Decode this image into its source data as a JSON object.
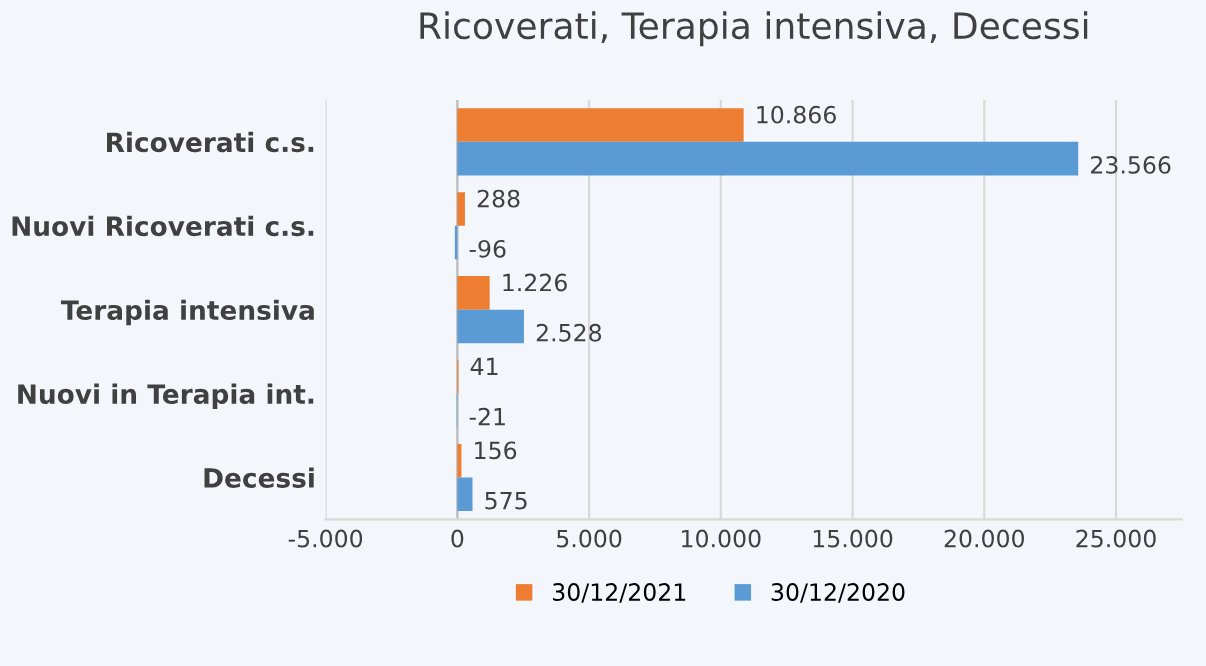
{
  "chart_data": {
    "type": "bar",
    "orientation": "horizontal",
    "title": "Ricoverati, Terapia intensiva, Decessi",
    "categories": [
      "Ricoverati c.s.",
      "Nuovi Ricoverati c.s.",
      "Terapia intensiva",
      "Nuovi in Terapia int.",
      "Decessi"
    ],
    "series": [
      {
        "name": "30/12/2021",
        "color": "#ed7d31",
        "values": [
          10866,
          288,
          1226,
          41,
          156
        ],
        "value_labels": [
          "10.866",
          "288",
          "1.226",
          "41",
          "156"
        ]
      },
      {
        "name": "30/12/2020",
        "color": "#5b9bd5",
        "values": [
          23566,
          -96,
          2528,
          -21,
          575
        ],
        "value_labels": [
          "23.566",
          "-96",
          "2.528",
          "-21",
          "575"
        ]
      }
    ],
    "xlim": [
      -5000,
      27500
    ],
    "xticks": [
      {
        "value": -5000,
        "label": "-5.000"
      },
      0,
      {
        "value": 5000,
        "label": "5.000"
      },
      {
        "value": 10000,
        "label": "10.000"
      },
      {
        "value": 15000,
        "label": "15.000"
      },
      {
        "value": 20000,
        "label": "20.000"
      },
      {
        "value": 25000,
        "label": "25.000"
      }
    ],
    "grid": "x",
    "legend": "bottom"
  }
}
